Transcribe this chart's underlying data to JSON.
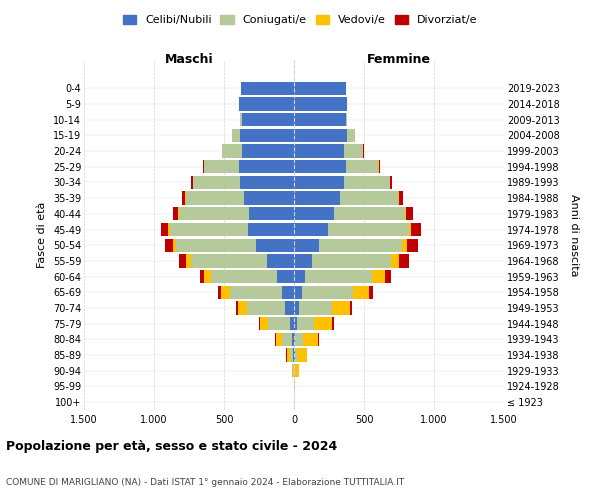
{
  "age_groups": [
    "100+",
    "95-99",
    "90-94",
    "85-89",
    "80-84",
    "75-79",
    "70-74",
    "65-69",
    "60-64",
    "55-59",
    "50-54",
    "45-49",
    "40-44",
    "35-39",
    "30-34",
    "25-29",
    "20-24",
    "15-19",
    "10-14",
    "5-9",
    "0-4"
  ],
  "birth_years": [
    "≤ 1923",
    "1924-1928",
    "1929-1933",
    "1934-1938",
    "1939-1943",
    "1944-1948",
    "1949-1953",
    "1954-1958",
    "1959-1963",
    "1964-1968",
    "1969-1973",
    "1974-1978",
    "1979-1983",
    "1984-1988",
    "1989-1993",
    "1994-1998",
    "1999-2003",
    "2004-2008",
    "2009-2013",
    "2014-2018",
    "2019-2023"
  ],
  "colors": {
    "celibi": "#4472c4",
    "coniugati": "#b5c99a",
    "vedovi": "#ffc000",
    "divorziati": "#c00000"
  },
  "males": {
    "celibi": [
      0,
      0,
      2,
      5,
      12,
      30,
      65,
      85,
      120,
      190,
      270,
      330,
      325,
      360,
      385,
      395,
      375,
      385,
      375,
      390,
      382
    ],
    "coniugati": [
      0,
      1,
      6,
      25,
      75,
      155,
      270,
      370,
      470,
      545,
      575,
      555,
      495,
      415,
      335,
      245,
      138,
      58,
      8,
      1,
      0
    ],
    "vedovi": [
      0,
      1,
      8,
      22,
      42,
      58,
      68,
      68,
      52,
      38,
      22,
      12,
      8,
      4,
      2,
      1,
      0,
      0,
      0,
      0,
      0
    ],
    "divorziati": [
      0,
      0,
      1,
      2,
      4,
      9,
      14,
      19,
      28,
      48,
      58,
      52,
      38,
      23,
      13,
      7,
      3,
      1,
      0,
      0,
      0
    ]
  },
  "females": {
    "celibi": [
      0,
      0,
      1,
      4,
      8,
      18,
      35,
      55,
      75,
      125,
      175,
      245,
      288,
      328,
      358,
      368,
      358,
      378,
      368,
      378,
      368
    ],
    "coniugati": [
      0,
      1,
      4,
      18,
      55,
      125,
      235,
      365,
      485,
      565,
      595,
      575,
      505,
      415,
      325,
      235,
      138,
      58,
      8,
      1,
      0
    ],
    "vedovi": [
      2,
      9,
      32,
      72,
      108,
      128,
      128,
      118,
      88,
      62,
      38,
      18,
      8,
      4,
      2,
      1,
      0,
      0,
      0,
      0,
      0
    ],
    "divorziati": [
      0,
      0,
      1,
      2,
      7,
      14,
      19,
      29,
      48,
      68,
      78,
      68,
      48,
      28,
      13,
      7,
      2,
      1,
      0,
      0,
      0
    ]
  },
  "xlim": 1500,
  "xticks": [
    -1500,
    -1000,
    -500,
    0,
    500,
    1000,
    1500
  ],
  "xtick_labels": [
    "1.500",
    "1.000",
    "500",
    "0",
    "500",
    "1.000",
    "1.500"
  ],
  "title": "Popolazione per età, sesso e stato civile - 2024",
  "subtitle": "COMUNE DI MARIGLIANO (NA) - Dati ISTAT 1° gennaio 2024 - Elaborazione TUTTITALIA.IT",
  "ylabel_left": "Fasce di età",
  "ylabel_right": "Anni di nascita",
  "header_maschi": "Maschi",
  "header_femmine": "Femmine",
  "legend_labels": [
    "Celibi/Nubili",
    "Coniugati/e",
    "Vedovi/e",
    "Divorziat/e"
  ]
}
